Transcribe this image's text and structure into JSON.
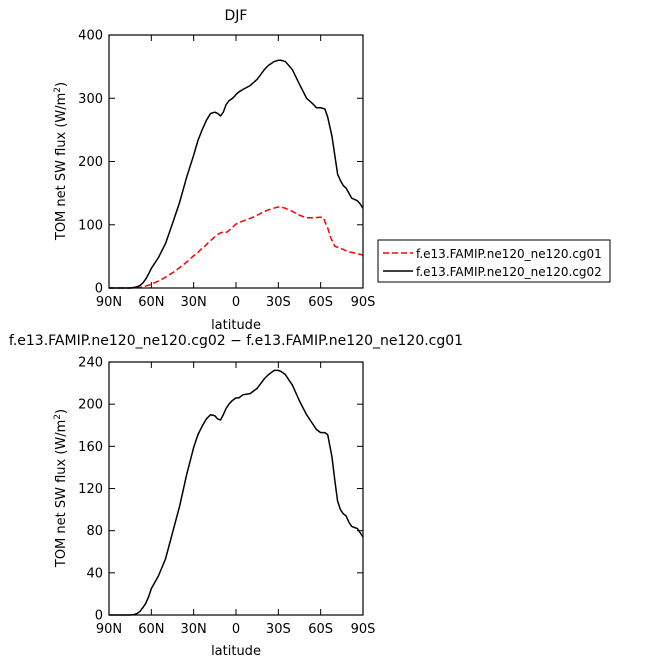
{
  "chart_data": [
    {
      "type": "line",
      "title": "DJF",
      "xlabel": "latitude",
      "ylabel": "TOM net SW flux (W/m",
      "ylabel_sup": "2",
      "ylabel_end": ")",
      "xlim": [
        90,
        -90
      ],
      "ylim": [
        0,
        400
      ],
      "xticks": [
        90,
        60,
        30,
        0,
        -30,
        -60,
        -90
      ],
      "xtick_labels": [
        "90N",
        "60N",
        "30N",
        "0",
        "30S",
        "60S",
        "90S"
      ],
      "yticks": [
        0,
        100,
        200,
        300,
        400
      ],
      "ytick_labels": [
        "0",
        "100",
        "200",
        "300",
        "400"
      ],
      "legend_position": "right",
      "series": [
        {
          "name": "f.e13.FAMIP.ne120_ne120.cg01",
          "color": "#ff0000",
          "style": "dashed",
          "x": [
            90,
            80,
            75,
            72,
            68,
            64,
            60,
            55,
            50,
            45,
            40,
            35,
            30,
            27,
            25,
            22,
            20,
            18,
            16,
            14,
            12,
            10,
            8,
            6,
            4,
            2,
            0,
            -2,
            -5,
            -10,
            -15,
            -20,
            -25,
            -28,
            -30,
            -32,
            -35,
            -40,
            -45,
            -50,
            -55,
            -60,
            -62,
            -63,
            -65,
            -67,
            -70,
            -75,
            -80,
            -85,
            -90
          ],
          "y": [
            0,
            0,
            0,
            0,
            1,
            3,
            6,
            11,
            17,
            24,
            32,
            41,
            51,
            56,
            61,
            66,
            71,
            75,
            79,
            83,
            86,
            88,
            87,
            89,
            93,
            97,
            101,
            103,
            106,
            110,
            115,
            121,
            125,
            127,
            128,
            128,
            126,
            121,
            115,
            111,
            111,
            112,
            111,
            105,
            95,
            80,
            66,
            62,
            57,
            55,
            52
          ]
        },
        {
          "name": "f.e13.FAMIP.ne120_ne120.cg02",
          "color": "#000000",
          "style": "solid",
          "x": [
            90,
            80,
            75,
            72,
            70,
            68,
            66,
            64,
            62,
            60,
            55,
            50,
            45,
            40,
            35,
            30,
            27,
            24,
            21,
            18,
            15,
            13,
            11,
            9,
            7,
            5,
            3,
            1,
            0,
            -2,
            -5,
            -10,
            -15,
            -20,
            -23,
            -25,
            -27,
            -30,
            -32,
            -35,
            -40,
            -45,
            -50,
            -55,
            -57,
            -60,
            -63,
            -65,
            -68,
            -70,
            -72,
            -74,
            -76,
            -78,
            -80,
            -82,
            -84,
            -86,
            -88,
            -90
          ],
          "y": [
            0,
            0,
            0,
            1,
            2,
            4,
            8,
            14,
            22,
            31,
            48,
            70,
            102,
            135,
            175,
            210,
            233,
            250,
            265,
            276,
            278,
            276,
            272,
            278,
            290,
            296,
            299,
            303,
            306,
            310,
            314,
            320,
            330,
            345,
            352,
            355,
            358,
            360,
            360,
            358,
            345,
            322,
            300,
            290,
            285,
            285,
            283,
            270,
            240,
            210,
            180,
            170,
            162,
            158,
            150,
            142,
            140,
            138,
            133,
            126
          ]
        }
      ]
    },
    {
      "type": "line",
      "title": "f.e13.FAMIP.ne120_ne120.cg02 − f.e13.FAMIP.ne120_ne120.cg01",
      "xlabel": "latitude",
      "ylabel": "TOM net SW flux (W/m",
      "ylabel_sup": "2",
      "ylabel_end": ")",
      "xlim": [
        90,
        -90
      ],
      "ylim": [
        0,
        240
      ],
      "xticks": [
        90,
        60,
        30,
        0,
        -30,
        -60,
        -90
      ],
      "xtick_labels": [
        "90N",
        "60N",
        "30N",
        "0",
        "30S",
        "60S",
        "90S"
      ],
      "yticks": [
        0,
        40,
        80,
        120,
        160,
        200,
        240
      ],
      "ytick_labels": [
        "0",
        "40",
        "80",
        "120",
        "160",
        "200",
        "240"
      ],
      "series": [
        {
          "color": "#000000",
          "style": "solid",
          "x": [
            90,
            80,
            75,
            72,
            70,
            68,
            66,
            64,
            62,
            60,
            55,
            50,
            45,
            40,
            35,
            30,
            27,
            24,
            21,
            18,
            15,
            13,
            11,
            9,
            7,
            5,
            3,
            1,
            0,
            -2,
            -5,
            -10,
            -15,
            -20,
            -23,
            -25,
            -27,
            -30,
            -32,
            -35,
            -40,
            -45,
            -50,
            -55,
            -57,
            -60,
            -63,
            -65,
            -68,
            -70,
            -72,
            -74,
            -76,
            -78,
            -80,
            -82,
            -84,
            -86,
            -88,
            -90
          ],
          "y": [
            0,
            0,
            0,
            0.5,
            1.5,
            3.5,
            7,
            11,
            17,
            25,
            37,
            53,
            78,
            103,
            133,
            159,
            171,
            179,
            186,
            190,
            189,
            186,
            185,
            190,
            196,
            200,
            203,
            205,
            206,
            206,
            209,
            210,
            215,
            224,
            228,
            230,
            232,
            232,
            231,
            228,
            218,
            203,
            190,
            180,
            176,
            173,
            173,
            171,
            150,
            128,
            108,
            100,
            96,
            94,
            88,
            84,
            83,
            82,
            78,
            74
          ]
        }
      ]
    }
  ]
}
